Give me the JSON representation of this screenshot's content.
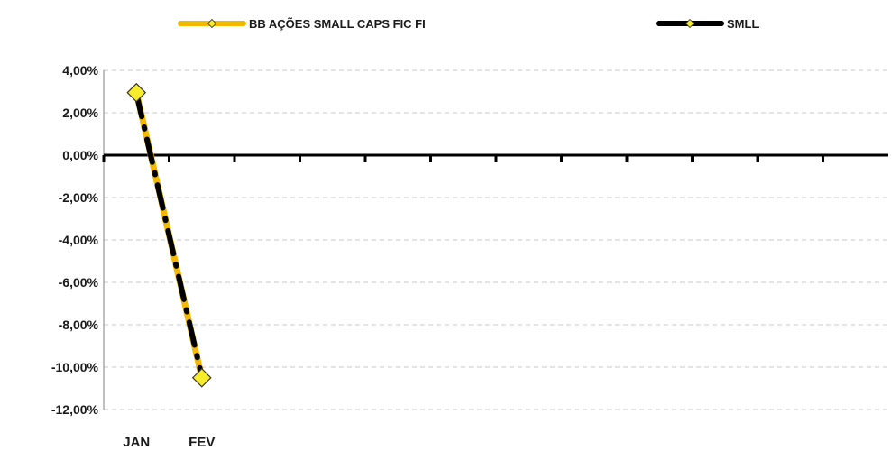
{
  "chart_data": {
    "type": "line",
    "categories": [
      "JAN",
      "FEV"
    ],
    "category_slots": 11,
    "series": [
      {
        "name": "BB AÇÕES SMALL CAPS FIC FI",
        "values": [
          2.95,
          -10.5
        ],
        "color": "#f5b800",
        "marker_color": "#f7ec2a",
        "style": "solid"
      },
      {
        "name": "SMLL",
        "values": [
          2.9,
          -10.45
        ],
        "color": "#000000",
        "marker_color": "#f7ec2a",
        "style": "dashed"
      }
    ],
    "yticks": [
      "4,00%",
      "2,00%",
      "0,00%",
      "-2,00%",
      "-4,00%",
      "-6,00%",
      "-8,00%",
      "-10,00%",
      "-12,00%"
    ],
    "ytick_values": [
      4,
      2,
      0,
      -2,
      -4,
      -6,
      -8,
      -10,
      -12
    ],
    "ylim": [
      -12,
      4
    ],
    "grid": true,
    "legend_position": "top",
    "xlabel": "",
    "ylabel": ""
  }
}
